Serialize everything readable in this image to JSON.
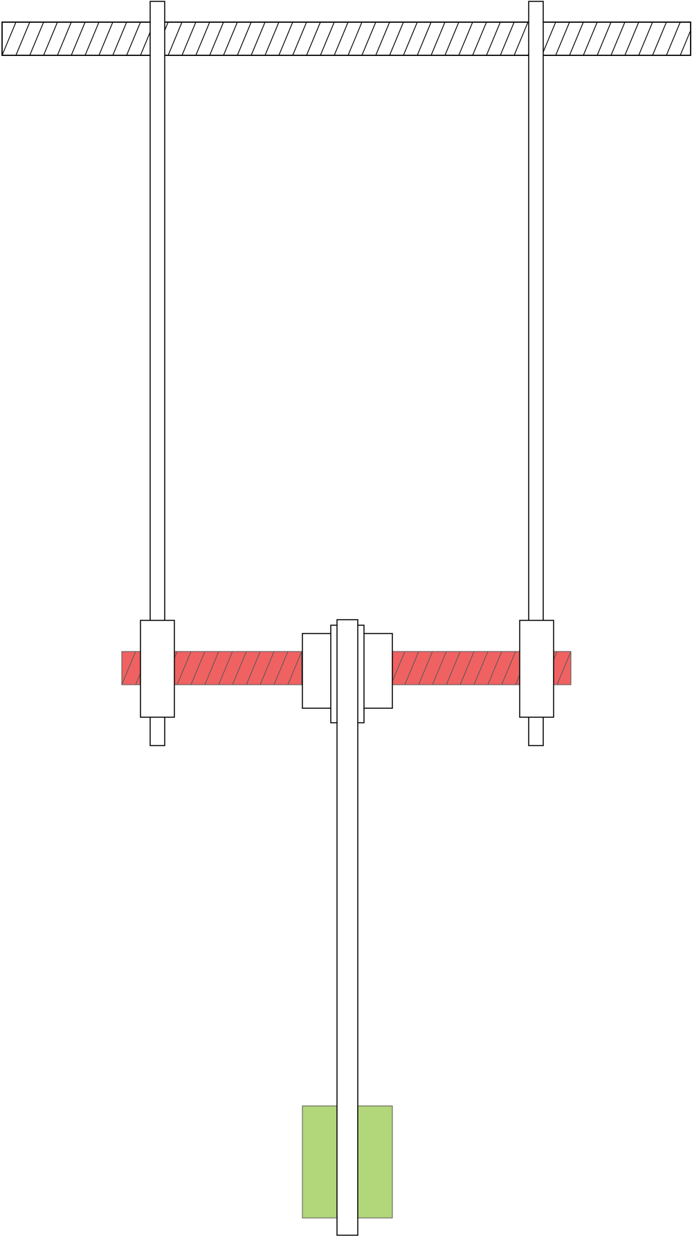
{
  "diagram": {
    "type": "mechanical-schematic",
    "texts": [],
    "components": [
      {
        "id": "ceiling-beam",
        "label": "",
        "fill": "#ffffff",
        "stroke": "#000000",
        "hatched": true
      },
      {
        "id": "left-hanger-rod",
        "label": "",
        "fill": "#ffffff",
        "stroke": "#000000"
      },
      {
        "id": "right-hanger-rod",
        "label": "",
        "fill": "#ffffff",
        "stroke": "#000000"
      },
      {
        "id": "red-crossbar",
        "label": "",
        "fill": "#f06262",
        "stroke": "#555555",
        "hatched": true
      },
      {
        "id": "left-clamp-block",
        "label": "",
        "fill": "#ffffff",
        "stroke": "#000000"
      },
      {
        "id": "right-clamp-block",
        "label": "",
        "fill": "#ffffff",
        "stroke": "#000000"
      },
      {
        "id": "center-hub-block",
        "label": "",
        "fill": "#ffffff",
        "stroke": "#000000"
      },
      {
        "id": "center-hub-inner",
        "label": "",
        "fill": "#ffffff",
        "stroke": "#000000"
      },
      {
        "id": "vertical-shaft",
        "label": "",
        "fill": "#ffffff",
        "stroke": "#000000"
      },
      {
        "id": "green-base-block",
        "label": "",
        "fill": "#b2d67a",
        "stroke": "#555555"
      }
    ],
    "colors": {
      "outline": "#000000",
      "crossbar": "#f06262",
      "base": "#b2d67a",
      "background": "#ffffff"
    }
  }
}
